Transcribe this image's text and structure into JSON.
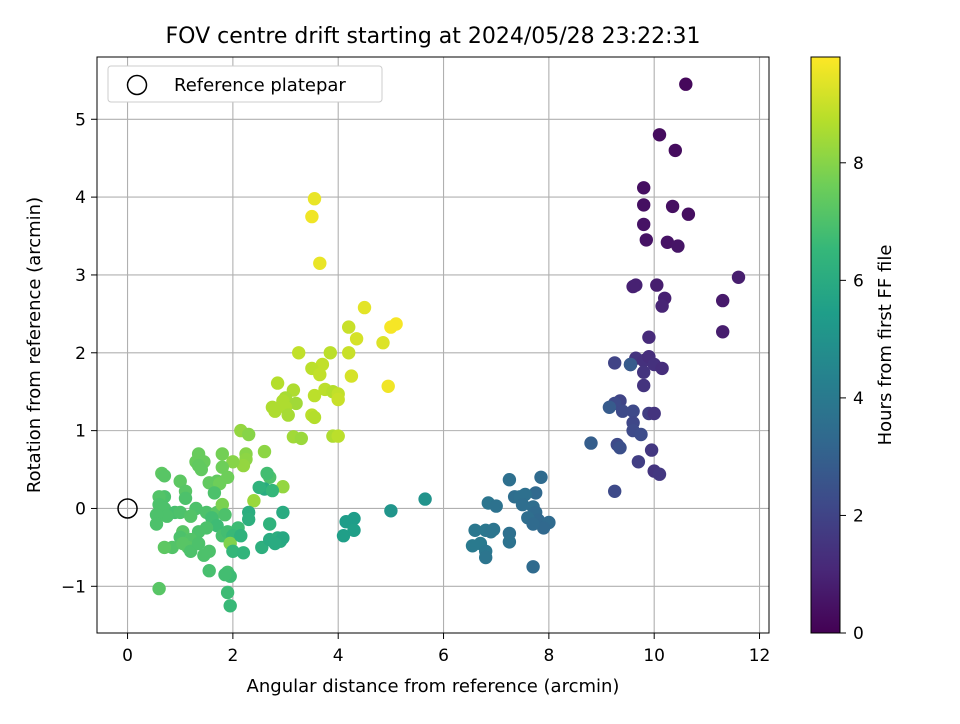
{
  "chart_data": {
    "type": "scatter",
    "title": "FOV centre drift starting at 2024/05/28 23:22:31",
    "xlabel": "Angular distance from reference (arcmin)",
    "ylabel": "Rotation from reference (arcmin)",
    "xlim": [
      -0.58,
      12.18
    ],
    "ylim": [
      -1.6,
      5.8
    ],
    "xticks": [
      "0",
      "2",
      "4",
      "6",
      "8",
      "10",
      "12"
    ],
    "yticks": [
      "−1",
      "0",
      "1",
      "2",
      "3",
      "4",
      "5"
    ],
    "grid": true,
    "legend": {
      "position": "top-left",
      "entries": [
        "Reference platepar"
      ]
    },
    "reference_point": {
      "x": 0,
      "y": 0
    },
    "colorbar": {
      "label": "Hours from first FF file",
      "range": [
        0,
        9.8
      ],
      "ticks": [
        "0",
        "2",
        "4",
        "6",
        "8"
      ],
      "colormap": "viridis",
      "colors": [
        "#440154",
        "#482878",
        "#3e4989",
        "#31688e",
        "#26828e",
        "#1f9e89",
        "#35b779",
        "#6ece58",
        "#b5de2b",
        "#fde725"
      ]
    },
    "points": [
      [
        10.6,
        5.45,
        0.2
      ],
      [
        10.1,
        4.8,
        0.3
      ],
      [
        10.4,
        4.6,
        0.3
      ],
      [
        9.8,
        4.12,
        0.4
      ],
      [
        10.35,
        3.88,
        0.4
      ],
      [
        10.65,
        3.78,
        0.35
      ],
      [
        9.8,
        3.9,
        0.4
      ],
      [
        9.8,
        3.65,
        0.5
      ],
      [
        9.85,
        3.45,
        0.5
      ],
      [
        10.25,
        3.42,
        0.5
      ],
      [
        10.45,
        3.37,
        0.55
      ],
      [
        11.6,
        2.97,
        0.8
      ],
      [
        10.05,
        2.87,
        0.8
      ],
      [
        9.6,
        2.85,
        0.9
      ],
      [
        9.65,
        2.87,
        0.9
      ],
      [
        10.2,
        2.7,
        0.9
      ],
      [
        10.15,
        2.6,
        1.0
      ],
      [
        11.3,
        2.67,
        0.7
      ],
      [
        11.3,
        2.27,
        0.8
      ],
      [
        9.9,
        2.2,
        1.2
      ],
      [
        9.65,
        1.93,
        1.5
      ],
      [
        9.8,
        1.9,
        1.4
      ],
      [
        9.9,
        1.95,
        1.3
      ],
      [
        10.0,
        1.85,
        1.4
      ],
      [
        10.15,
        1.8,
        1.3
      ],
      [
        9.8,
        1.75,
        1.5
      ],
      [
        9.55,
        1.85,
        1.6
      ],
      [
        9.25,
        1.87,
        2.0
      ],
      [
        9.55,
        1.85,
        2.8
      ],
      [
        9.8,
        1.58,
        1.5
      ],
      [
        9.35,
        1.38,
        2.0
      ],
      [
        9.25,
        1.35,
        2.2
      ],
      [
        9.15,
        1.3,
        2.8
      ],
      [
        9.4,
        1.25,
        2.2
      ],
      [
        9.6,
        1.25,
        2.2
      ],
      [
        9.9,
        1.22,
        1.8
      ],
      [
        10.0,
        1.22,
        1.5
      ],
      [
        9.6,
        1.1,
        2.1
      ],
      [
        9.6,
        1.0,
        2.2
      ],
      [
        9.75,
        0.95,
        2.3
      ],
      [
        9.3,
        0.82,
        2.2
      ],
      [
        9.35,
        0.78,
        2.4
      ],
      [
        8.8,
        0.84,
        2.9
      ],
      [
        9.95,
        0.75,
        1.6
      ],
      [
        9.7,
        0.6,
        1.8
      ],
      [
        10.0,
        0.48,
        1.5
      ],
      [
        10.1,
        0.44,
        1.6
      ],
      [
        9.25,
        0.22,
        2.2
      ],
      [
        7.25,
        0.37,
        3.6
      ],
      [
        7.85,
        0.4,
        3.4
      ],
      [
        7.75,
        0.2,
        3.3
      ],
      [
        7.35,
        0.15,
        3.5
      ],
      [
        7.45,
        0.15,
        3.6
      ],
      [
        7.55,
        0.18,
        3.6
      ],
      [
        6.85,
        0.07,
        3.8
      ],
      [
        7.0,
        0.03,
        3.7
      ],
      [
        7.5,
        0.05,
        3.5
      ],
      [
        7.7,
        0.02,
        3.5
      ],
      [
        7.75,
        -0.05,
        3.4
      ],
      [
        7.8,
        -0.15,
        3.3
      ],
      [
        8.0,
        -0.18,
        3.4
      ],
      [
        7.9,
        -0.25,
        3.3
      ],
      [
        7.6,
        -0.12,
        3.5
      ],
      [
        7.7,
        -0.2,
        3.4
      ],
      [
        6.6,
        -0.28,
        3.9
      ],
      [
        6.8,
        -0.28,
        3.9
      ],
      [
        6.9,
        -0.3,
        3.8
      ],
      [
        7.25,
        -0.32,
        3.6
      ],
      [
        7.25,
        -0.43,
        3.7
      ],
      [
        6.55,
        -0.48,
        4.0
      ],
      [
        6.7,
        -0.45,
        4.0
      ],
      [
        6.8,
        -0.55,
        3.9
      ],
      [
        6.8,
        -0.63,
        3.8
      ],
      [
        7.7,
        -0.75,
        3.4
      ],
      [
        6.95,
        -0.27,
        3.8
      ],
      [
        5.65,
        0.12,
        5.0
      ],
      [
        5.0,
        -0.03,
        5.1
      ],
      [
        4.3,
        -0.13,
        5.4
      ],
      [
        4.15,
        -0.17,
        5.4
      ],
      [
        4.3,
        -0.28,
        5.5
      ],
      [
        4.1,
        -0.35,
        5.5
      ],
      [
        3.55,
        3.98,
        9.5
      ],
      [
        3.5,
        3.75,
        9.6
      ],
      [
        3.65,
        3.15,
        9.5
      ],
      [
        4.5,
        2.58,
        9.4
      ],
      [
        5.1,
        2.37,
        9.7
      ],
      [
        5.0,
        2.33,
        9.7
      ],
      [
        4.2,
        2.33,
        9.0
      ],
      [
        4.35,
        2.18,
        9.2
      ],
      [
        4.85,
        2.13,
        9.3
      ],
      [
        4.2,
        2.0,
        9.0
      ],
      [
        3.25,
        2.0,
        8.9
      ],
      [
        3.85,
        2.0,
        8.8
      ],
      [
        3.7,
        1.85,
        8.9
      ],
      [
        3.5,
        1.8,
        8.8
      ],
      [
        3.65,
        1.72,
        8.9
      ],
      [
        4.25,
        1.7,
        9.2
      ],
      [
        3.75,
        1.53,
        8.8
      ],
      [
        3.9,
        1.5,
        8.7
      ],
      [
        4.0,
        1.47,
        8.9
      ],
      [
        3.55,
        1.45,
        8.8
      ],
      [
        4.0,
        1.4,
        9.0
      ],
      [
        4.95,
        1.57,
        9.6
      ],
      [
        2.85,
        1.61,
        8.7
      ],
      [
        3.15,
        1.52,
        8.6
      ],
      [
        3.0,
        1.42,
        8.5
      ],
      [
        2.95,
        1.38,
        8.6
      ],
      [
        3.2,
        1.35,
        8.4
      ],
      [
        3.0,
        1.3,
        8.6
      ],
      [
        2.75,
        1.3,
        8.6
      ],
      [
        2.8,
        1.25,
        8.6
      ],
      [
        3.05,
        1.2,
        8.5
      ],
      [
        3.5,
        1.2,
        8.8
      ],
      [
        3.55,
        1.17,
        8.7
      ],
      [
        3.15,
        0.92,
        8.4
      ],
      [
        3.3,
        0.9,
        8.3
      ],
      [
        3.9,
        0.93,
        8.6
      ],
      [
        4.0,
        0.93,
        8.8
      ],
      [
        2.15,
        1.0,
        8.2
      ],
      [
        2.3,
        0.95,
        8.0
      ],
      [
        2.6,
        0.73,
        8.1
      ],
      [
        2.25,
        0.7,
        8.0
      ],
      [
        2.25,
        0.63,
        8.1
      ],
      [
        2.2,
        0.55,
        8.2
      ],
      [
        2.0,
        0.6,
        8.0
      ],
      [
        1.8,
        0.7,
        7.7
      ],
      [
        1.35,
        0.7,
        7.5
      ],
      [
        1.3,
        0.6,
        7.5
      ],
      [
        1.45,
        0.6,
        7.5
      ],
      [
        1.35,
        0.55,
        7.4
      ],
      [
        0.65,
        0.45,
        7.3
      ],
      [
        0.7,
        0.42,
        7.2
      ],
      [
        1.0,
        0.35,
        7.3
      ],
      [
        1.4,
        0.5,
        7.4
      ],
      [
        1.8,
        0.53,
        7.6
      ],
      [
        1.55,
        0.33,
        7.4
      ],
      [
        1.7,
        0.35,
        7.4
      ],
      [
        1.75,
        0.32,
        7.6
      ],
      [
        1.9,
        0.4,
        7.6
      ],
      [
        2.95,
        0.28,
        8.2
      ],
      [
        2.7,
        0.4,
        7.0
      ],
      [
        2.6,
        0.25,
        6.0
      ],
      [
        2.65,
        0.45,
        6.8
      ],
      [
        2.75,
        0.23,
        6.5
      ],
      [
        2.5,
        0.27,
        6.3
      ],
      [
        2.4,
        0.1,
        8.3
      ],
      [
        1.65,
        0.2,
        7.0
      ],
      [
        1.1,
        0.22,
        7.2
      ],
      [
        1.1,
        0.13,
        7.0
      ],
      [
        0.7,
        0.15,
        7.0
      ],
      [
        0.6,
        0.15,
        7.1
      ],
      [
        0.6,
        0.05,
        7.0
      ],
      [
        0.7,
        0.0,
        7.0
      ],
      [
        0.9,
        -0.05,
        6.9
      ],
      [
        0.75,
        -0.1,
        7.0
      ],
      [
        0.55,
        -0.08,
        7.0
      ],
      [
        0.55,
        -0.2,
        7.0
      ],
      [
        1.0,
        -0.05,
        7.0
      ],
      [
        1.3,
        0.0,
        7.0
      ],
      [
        1.2,
        -0.1,
        7.1
      ],
      [
        1.5,
        -0.05,
        7.0
      ],
      [
        1.7,
        -0.05,
        7.2
      ],
      [
        1.8,
        0.05,
        7.8
      ],
      [
        1.85,
        -0.08,
        7.0
      ],
      [
        1.6,
        -0.12,
        6.8
      ],
      [
        1.7,
        -0.22,
        6.7
      ],
      [
        1.5,
        -0.25,
        7.0
      ],
      [
        1.35,
        -0.3,
        7.0
      ],
      [
        1.05,
        -0.3,
        7.2
      ],
      [
        1.0,
        -0.37,
        7.0
      ],
      [
        1.2,
        -0.4,
        7.1
      ],
      [
        1.15,
        -0.5,
        7.2
      ],
      [
        0.85,
        -0.5,
        7.1
      ],
      [
        0.7,
        -0.5,
        7.3
      ],
      [
        1.05,
        -0.45,
        7.2
      ],
      [
        1.2,
        -0.55,
        7.0
      ],
      [
        1.35,
        -0.45,
        7.0
      ],
      [
        1.55,
        -0.55,
        7.0
      ],
      [
        1.45,
        -0.6,
        7.0
      ],
      [
        1.8,
        -0.35,
        6.9
      ],
      [
        1.9,
        -0.3,
        6.8
      ],
      [
        2.1,
        -0.25,
        6.7
      ],
      [
        2.0,
        -0.35,
        6.6
      ],
      [
        1.95,
        -0.45,
        7.9
      ],
      [
        2.0,
        -0.55,
        6.5
      ],
      [
        2.2,
        -0.57,
        6.4
      ],
      [
        2.15,
        -0.35,
        6.3
      ],
      [
        2.3,
        -0.05,
        6.1
      ],
      [
        2.3,
        -0.14,
        6.2
      ],
      [
        2.55,
        -0.5,
        6.2
      ],
      [
        2.7,
        -0.4,
        6.0
      ],
      [
        2.7,
        -0.2,
        6.3
      ],
      [
        2.85,
        -0.38,
        6.1
      ],
      [
        2.9,
        -0.42,
        6.0
      ],
      [
        2.95,
        -0.38,
        5.9
      ],
      [
        2.95,
        -0.05,
        6.0
      ],
      [
        2.8,
        -0.45,
        6.0
      ],
      [
        1.55,
        -0.8,
        6.9
      ],
      [
        1.9,
        -0.82,
        6.9
      ],
      [
        1.95,
        -0.87,
        6.7
      ],
      [
        1.85,
        -0.85,
        6.8
      ],
      [
        1.9,
        -1.08,
        6.7
      ],
      [
        1.95,
        -1.25,
        6.6
      ],
      [
        0.6,
        -1.03,
        7.2
      ]
    ]
  }
}
